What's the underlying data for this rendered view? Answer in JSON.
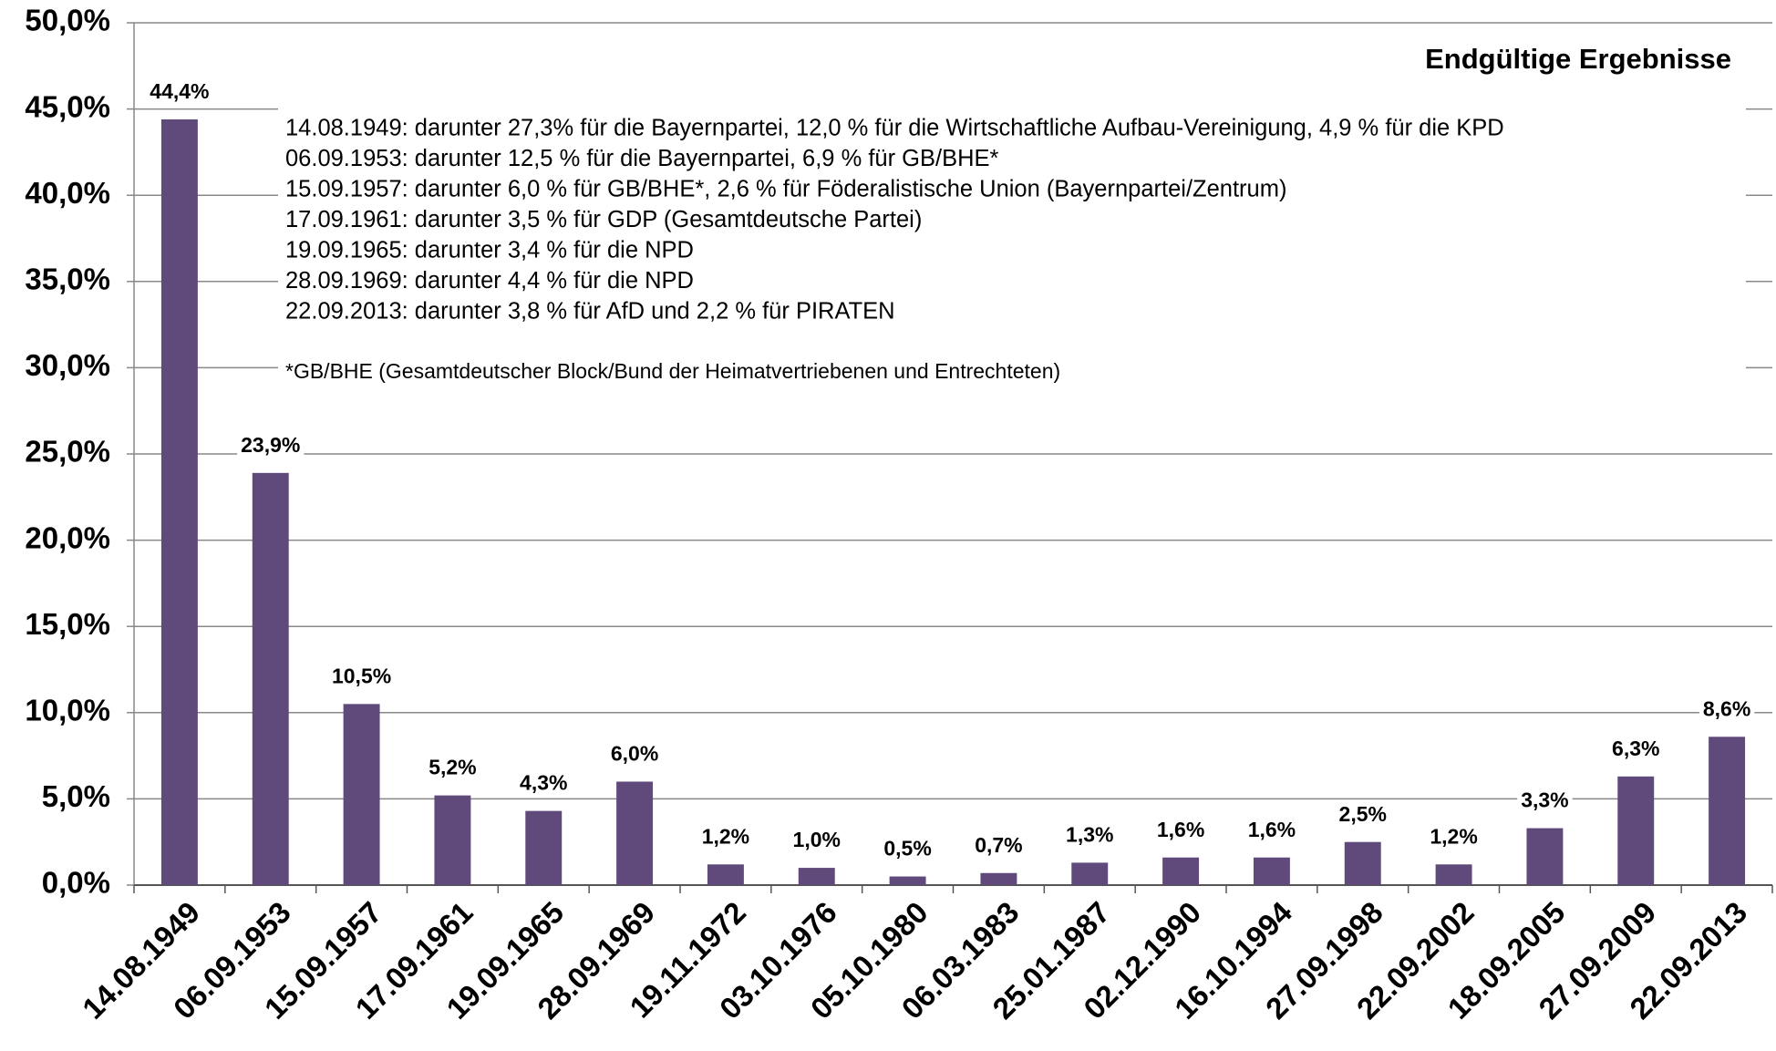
{
  "chart_data": {
    "type": "bar",
    "title": "Endgültige Ergebnisse",
    "notes": [
      "14.08.1949: darunter 27,3% für die Bayernpartei, 12,0 % für die Wirtschaftliche Aufbau-Vereinigung, 4,9 % für die KPD",
      "06.09.1953: darunter 12,5 % für die Bayernpartei, 6,9 % für GB/BHE*",
      "15.09.1957: darunter 6,0 % für GB/BHE*, 2,6 % für Föderalistische Union (Bayernpartei/Zentrum)",
      "17.09.1961: darunter 3,5 % für GDP (Gesamtdeutsche Partei)",
      "19.09.1965: darunter 3,4 % für die NPD",
      "28.09.1969: darunter 4,4 % für die NPD",
      "22.09.2013: darunter 3,8 % für AfD und 2,2 % für PIRATEN"
    ],
    "footnote": "*GB/BHE (Gesamtdeutscher Block/Bund der Heimatvertriebenen und Entrechteten)",
    "categories": [
      "14.08.1949",
      "06.09.1953",
      "15.09.1957",
      "17.09.1961",
      "19.09.1965",
      "28.09.1969",
      "19.11.1972",
      "03.10.1976",
      "05.10.1980",
      "06.03.1983",
      "25.01.1987",
      "02.12.1990",
      "16.10.1994",
      "27.09.1998",
      "22.09.2002",
      "18.09.2005",
      "27.09.2009",
      "22.09.2013"
    ],
    "values": [
      44.4,
      23.9,
      10.5,
      5.2,
      4.3,
      6.0,
      1.2,
      1.0,
      0.5,
      0.7,
      1.3,
      1.6,
      1.6,
      2.5,
      1.2,
      3.3,
      6.3,
      8.6
    ],
    "value_labels": [
      "44,4%",
      "23,9%",
      "10,5%",
      "5,2%",
      "4,3%",
      "6,0%",
      "1,2%",
      "1,0%",
      "0,5%",
      "0,7%",
      "1,3%",
      "1,6%",
      "1,6%",
      "2,5%",
      "1,2%",
      "3,3%",
      "6,3%",
      "8,6%"
    ],
    "color": "#604a7b",
    "ylim": [
      0,
      50
    ],
    "yticks": [
      {
        "value": 0,
        "label": "0,0%"
      },
      {
        "value": 5,
        "label": "5,0%"
      },
      {
        "value": 10,
        "label": "10,0%"
      },
      {
        "value": 15,
        "label": "15,0%"
      },
      {
        "value": 20,
        "label": "20,0%"
      },
      {
        "value": 25,
        "label": "25,0%"
      },
      {
        "value": 30,
        "label": "30,0%"
      },
      {
        "value": 35,
        "label": "35,0%"
      },
      {
        "value": 40,
        "label": "40,0%"
      },
      {
        "value": 45,
        "label": "45,0%"
      },
      {
        "value": 50,
        "label": "50,0%"
      }
    ],
    "grid": true
  }
}
